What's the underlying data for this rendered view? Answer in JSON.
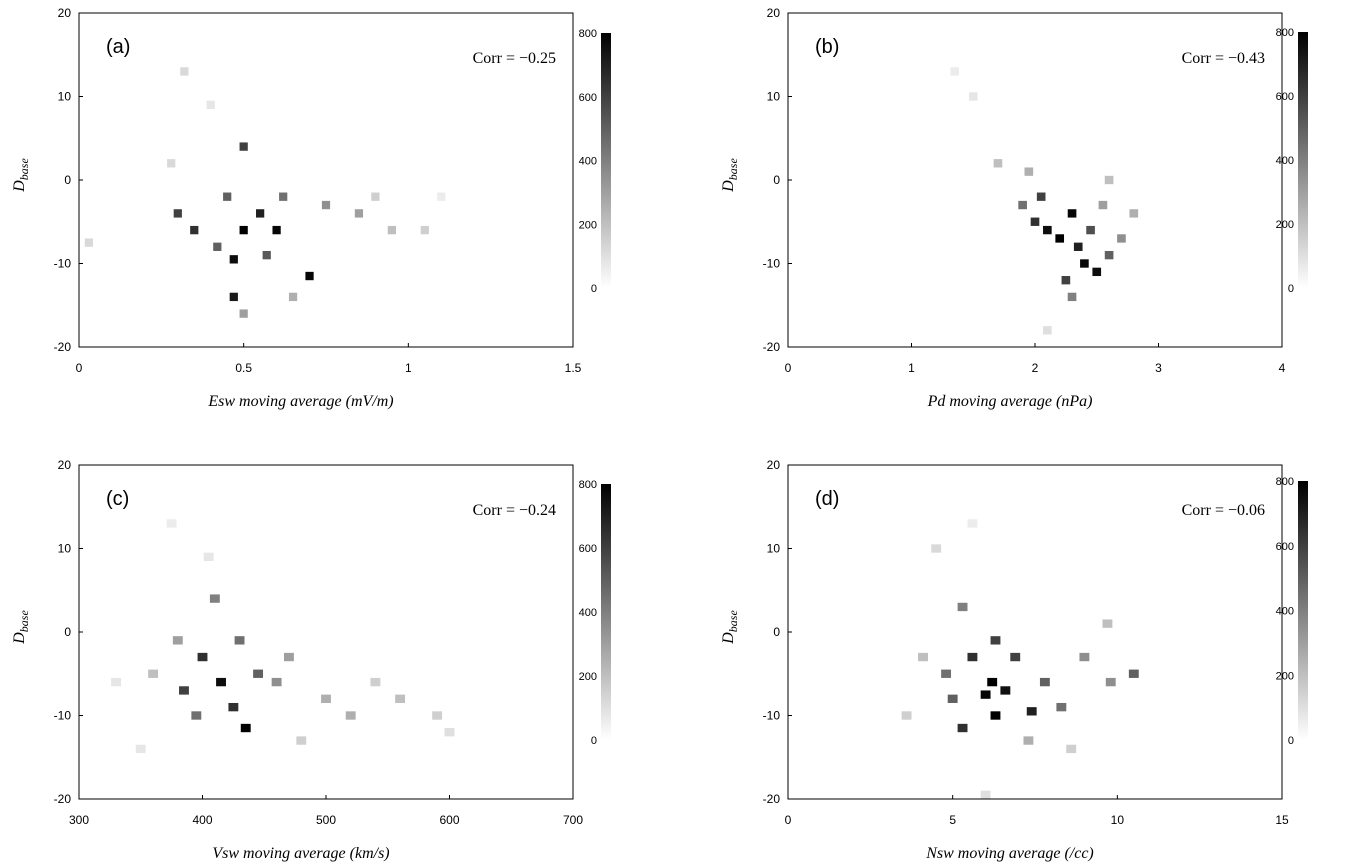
{
  "panels": [
    {
      "label": "(a)",
      "corr": "Corr = −0.25",
      "xlabel": "Esw moving average (mV/m)",
      "ylabel_main": "D",
      "ylabel_sub": "base",
      "xticks": [
        "0",
        "0.5",
        "1",
        "1.5"
      ],
      "yticks": [
        "20",
        "10",
        "0",
        "-10",
        "-20"
      ],
      "cbar_ticks": [
        "800",
        "600",
        "400",
        "200",
        "0"
      ]
    },
    {
      "label": "(b)",
      "corr": "Corr = −0.43",
      "xlabel": "Pd moving average (nPa)",
      "ylabel_main": "D",
      "ylabel_sub": "base",
      "xticks": [
        "0",
        "1",
        "2",
        "3",
        "4"
      ],
      "yticks": [
        "20",
        "10",
        "0",
        "-10",
        "-20"
      ],
      "cbar_ticks": [
        "800",
        "600",
        "400",
        "200",
        "0"
      ]
    },
    {
      "label": "(c)",
      "corr": "Corr = −0.24",
      "xlabel": "Vsw moving average (km/s)",
      "ylabel_main": "D",
      "ylabel_sub": "base",
      "xticks": [
        "300",
        "400",
        "500",
        "600",
        "700"
      ],
      "yticks": [
        "20",
        "10",
        "0",
        "-10",
        "-20"
      ],
      "cbar_ticks": [
        "800",
        "600",
        "400",
        "200",
        "0"
      ]
    },
    {
      "label": "(d)",
      "corr": "Corr = −0.06",
      "xlabel": "Nsw moving average (/cc)",
      "ylabel_main": "D",
      "ylabel_sub": "base",
      "xticks": [
        "0",
        "5",
        "10",
        "15"
      ],
      "yticks": [
        "20",
        "10",
        "0",
        "-10",
        "-20"
      ],
      "cbar_ticks": [
        "800",
        "600",
        "400",
        "200",
        "0"
      ]
    }
  ],
  "chart_data": [
    {
      "type": "heatmap",
      "title": "(a)",
      "annotation": "Corr = −0.25",
      "xlabel": "Esw moving average (mV/m)",
      "ylabel": "D_base",
      "xlim": [
        0,
        1.5
      ],
      "ylim": [
        -20,
        20
      ],
      "colorbar_range": [
        0,
        800
      ],
      "colormap": "white-to-black",
      "bin_width": [
        0.025,
        1
      ],
      "cells": [
        [
          0.5,
          -6,
          800
        ],
        [
          0.6,
          -6,
          780
        ],
        [
          0.55,
          -4,
          700
        ],
        [
          0.7,
          -11.5,
          780
        ],
        [
          0.47,
          -9.5,
          760
        ],
        [
          0.47,
          -14,
          720
        ],
        [
          0.35,
          -6,
          650
        ],
        [
          0.3,
          -4,
          600
        ],
        [
          0.45,
          -2,
          500
        ],
        [
          0.5,
          4,
          600
        ],
        [
          0.62,
          -2,
          450
        ],
        [
          0.42,
          -8,
          500
        ],
        [
          0.57,
          -9,
          520
        ],
        [
          0.75,
          -3,
          350
        ],
        [
          0.85,
          -4,
          300
        ],
        [
          0.32,
          13,
          120
        ],
        [
          0.4,
          9,
          80
        ],
        [
          0.28,
          2,
          120
        ],
        [
          0.95,
          -6,
          200
        ],
        [
          1.05,
          -6,
          150
        ],
        [
          0.03,
          -7.5,
          120
        ],
        [
          0.9,
          -2,
          150
        ],
        [
          0.65,
          -14,
          250
        ],
        [
          0.5,
          -16,
          300
        ],
        [
          1.1,
          -2,
          60
        ]
      ]
    },
    {
      "type": "heatmap",
      "title": "(b)",
      "annotation": "Corr = −0.43",
      "xlabel": "Pd moving average (nPa)",
      "ylabel": "D_base",
      "xlim": [
        0,
        4
      ],
      "ylim": [
        -20,
        20
      ],
      "colorbar_range": [
        0,
        800
      ],
      "colormap": "white-to-black",
      "bin_width": [
        0.07,
        1
      ],
      "cells": [
        [
          2.2,
          -7,
          800
        ],
        [
          2.3,
          -4,
          780
        ],
        [
          2.1,
          -6,
          760
        ],
        [
          2.4,
          -10,
          780
        ],
        [
          2.5,
          -11,
          760
        ],
        [
          2.35,
          -8,
          700
        ],
        [
          2.0,
          -5,
          650
        ],
        [
          2.05,
          -2,
          600
        ],
        [
          2.45,
          -6,
          550
        ],
        [
          2.6,
          -9,
          500
        ],
        [
          1.9,
          -3,
          450
        ],
        [
          2.25,
          -12,
          600
        ],
        [
          2.3,
          -14,
          400
        ],
        [
          2.7,
          -7,
          350
        ],
        [
          2.8,
          -4,
          250
        ],
        [
          1.7,
          2,
          200
        ],
        [
          1.5,
          10,
          80
        ],
        [
          1.35,
          13,
          60
        ],
        [
          2.6,
          0,
          200
        ],
        [
          2.1,
          -18,
          100
        ],
        [
          1.95,
          1,
          250
        ],
        [
          2.55,
          -3,
          300
        ]
      ]
    },
    {
      "type": "heatmap",
      "title": "(c)",
      "annotation": "Corr = −0.24",
      "xlabel": "Vsw moving average (km/s)",
      "ylabel": "D_base",
      "xlim": [
        300,
        700
      ],
      "ylim": [
        -20,
        20
      ],
      "colorbar_range": [
        0,
        800
      ],
      "colormap": "white-to-black",
      "bin_width": [
        8,
        1
      ],
      "cells": [
        [
          435,
          -11.5,
          800
        ],
        [
          415,
          -6,
          760
        ],
        [
          400,
          -3,
          650
        ],
        [
          385,
          -7,
          600
        ],
        [
          425,
          -9,
          650
        ],
        [
          445,
          -5,
          500
        ],
        [
          430,
          -1,
          450
        ],
        [
          410,
          4,
          400
        ],
        [
          395,
          -10,
          450
        ],
        [
          460,
          -6,
          350
        ],
        [
          470,
          -3,
          300
        ],
        [
          380,
          -1,
          300
        ],
        [
          500,
          -8,
          250
        ],
        [
          520,
          -10,
          250
        ],
        [
          560,
          -8,
          200
        ],
        [
          590,
          -10,
          150
        ],
        [
          540,
          -6,
          150
        ],
        [
          330,
          -6,
          80
        ],
        [
          360,
          -5,
          200
        ],
        [
          405,
          9,
          80
        ],
        [
          375,
          13,
          60
        ],
        [
          600,
          -12,
          100
        ],
        [
          350,
          -14,
          80
        ],
        [
          480,
          -13,
          150
        ]
      ]
    },
    {
      "type": "heatmap",
      "title": "(d)",
      "annotation": "Corr = −0.06",
      "xlabel": "Nsw moving average (/cc)",
      "ylabel": "D_base",
      "xlim": [
        0,
        15
      ],
      "ylim": [
        -20,
        20
      ],
      "colorbar_range": [
        0,
        800
      ],
      "colormap": "white-to-black",
      "bin_width": [
        0.3,
        1
      ],
      "cells": [
        [
          6.2,
          -6,
          800
        ],
        [
          6.0,
          -7.5,
          780
        ],
        [
          6.3,
          -10,
          800
        ],
        [
          6.6,
          -7,
          750
        ],
        [
          7.4,
          -9.5,
          700
        ],
        [
          5.6,
          -3,
          650
        ],
        [
          6.9,
          -3,
          600
        ],
        [
          5.3,
          -11.5,
          650
        ],
        [
          7.8,
          -6,
          500
        ],
        [
          6.3,
          -1,
          600
        ],
        [
          4.8,
          -5,
          450
        ],
        [
          5.0,
          -8,
          500
        ],
        [
          8.3,
          -9,
          450
        ],
        [
          9.0,
          -3,
          350
        ],
        [
          9.8,
          -6,
          350
        ],
        [
          10.5,
          -5,
          500
        ],
        [
          5.3,
          3,
          400
        ],
        [
          4.5,
          10,
          120
        ],
        [
          5.6,
          13,
          60
        ],
        [
          4.1,
          -3,
          200
        ],
        [
          3.6,
          -10,
          150
        ],
        [
          8.6,
          -14,
          150
        ],
        [
          9.7,
          1,
          200
        ],
        [
          6.0,
          -19.5,
          100
        ],
        [
          7.3,
          -13,
          250
        ]
      ]
    }
  ]
}
